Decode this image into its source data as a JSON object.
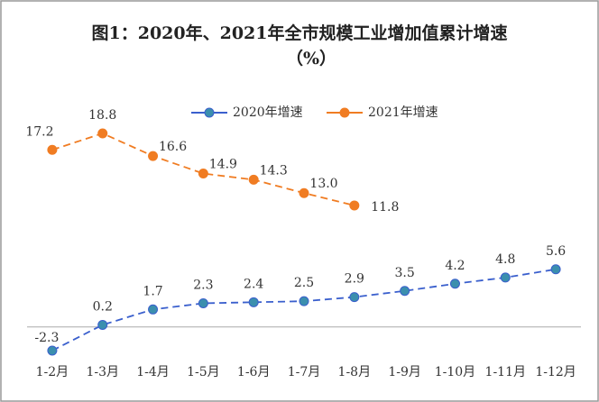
{
  "chart_data": {
    "type": "line",
    "title": "图1：2020年、2021年全市规模工业增加值累计增速",
    "subtitle": "（%）",
    "categories": [
      "1-2月",
      "1-3月",
      "1-4月",
      "1-5月",
      "1-6月",
      "1-7月",
      "1-8月",
      "1-9月",
      "1-10月",
      "1-11月",
      "1-12月"
    ],
    "series": [
      {
        "name": "2020年增速",
        "color": "#3a5fcd",
        "marker_color": "#3b8fae",
        "dashed": true,
        "values": [
          -2.3,
          0.2,
          1.7,
          2.3,
          2.4,
          2.5,
          2.9,
          3.5,
          4.2,
          4.8,
          5.6
        ],
        "value_labels": [
          "-2.3",
          "0.2",
          "1.7",
          "2.3",
          "2.4",
          "2.5",
          "2.9",
          "3.5",
          "4.2",
          "4.8",
          "5.6"
        ]
      },
      {
        "name": "2021年增速",
        "color": "#f07c22",
        "marker_color": "#f07c22",
        "dashed": true,
        "values": [
          17.2,
          18.8,
          16.6,
          14.9,
          14.3,
          13.0,
          11.8,
          null,
          null,
          null,
          null
        ],
        "value_labels": [
          "17.2",
          "18.8",
          "16.6",
          "14.9",
          "14.3",
          "13.0",
          "11.8",
          null,
          null,
          null,
          null
        ]
      }
    ],
    "ylim": [
      -3,
      23
    ],
    "grid": false,
    "legend": "top"
  }
}
